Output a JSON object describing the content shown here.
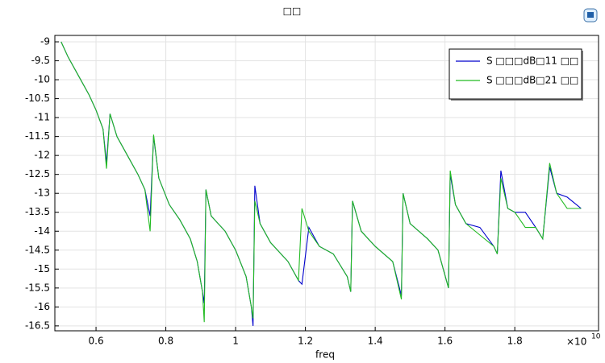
{
  "chart_data": {
    "type": "line",
    "title": "□□",
    "xlabel": "freq",
    "x_multiplier": "×10",
    "x_multiplier_exp": "10",
    "x": [
      0.5,
      0.52,
      0.55,
      0.58,
      0.6,
      0.62,
      0.63,
      0.64,
      0.66,
      0.69,
      0.72,
      0.74,
      0.755,
      0.765,
      0.78,
      0.81,
      0.84,
      0.87,
      0.89,
      0.905,
      0.91,
      0.915,
      0.93,
      0.97,
      1.0,
      1.03,
      1.045,
      1.05,
      1.055,
      1.07,
      1.1,
      1.15,
      1.18,
      1.19,
      1.21,
      1.24,
      1.28,
      1.32,
      1.33,
      1.335,
      1.36,
      1.4,
      1.45,
      1.475,
      1.48,
      1.5,
      1.55,
      1.58,
      1.61,
      1.615,
      1.63,
      1.66,
      1.7,
      1.74,
      1.75,
      1.76,
      1.78,
      1.8,
      1.83,
      1.86,
      1.88,
      1.9,
      1.92,
      1.95,
      1.99
    ],
    "series": [
      {
        "name": "S □□□dB□11 □□",
        "color": "#0000cc",
        "values": [
          -9.0,
          -9.4,
          -9.9,
          -10.4,
          -10.8,
          -11.3,
          -12.2,
          -10.9,
          -11.5,
          -12.0,
          -12.5,
          -12.9,
          -13.6,
          -11.5,
          -12.6,
          -13.3,
          -13.7,
          -14.2,
          -14.8,
          -15.6,
          -15.9,
          -12.9,
          -13.6,
          -14.0,
          -14.5,
          -15.2,
          -16.0,
          -16.5,
          -12.8,
          -13.8,
          -14.3,
          -14.8,
          -15.3,
          -15.4,
          -13.9,
          -14.4,
          -14.6,
          -15.2,
          -15.6,
          -13.2,
          -14.0,
          -14.4,
          -14.8,
          -15.7,
          -13.0,
          -13.8,
          -14.2,
          -14.5,
          -15.5,
          -12.5,
          -13.3,
          -13.8,
          -13.9,
          -14.4,
          -14.6,
          -12.4,
          -13.4,
          -13.5,
          -13.5,
          -13.9,
          -14.2,
          -12.3,
          -13.0,
          -13.1,
          -13.4
        ]
      },
      {
        "name": "S □□□dB□21 □□",
        "color": "#22bb22",
        "values": [
          -9.0,
          -9.4,
          -9.9,
          -10.4,
          -10.8,
          -11.3,
          -12.35,
          -10.9,
          -11.5,
          -12.0,
          -12.5,
          -12.9,
          -14.0,
          -11.45,
          -12.6,
          -13.3,
          -13.7,
          -14.2,
          -14.8,
          -15.6,
          -16.4,
          -12.9,
          -13.6,
          -14.0,
          -14.5,
          -15.2,
          -16.0,
          -16.3,
          -13.2,
          -13.8,
          -14.3,
          -14.8,
          -15.3,
          -13.4,
          -14.0,
          -14.4,
          -14.6,
          -15.2,
          -15.6,
          -13.2,
          -14.0,
          -14.4,
          -14.8,
          -15.8,
          -13.0,
          -13.8,
          -14.2,
          -14.5,
          -15.5,
          -12.4,
          -13.3,
          -13.8,
          -14.1,
          -14.4,
          -14.6,
          -12.6,
          -13.4,
          -13.5,
          -13.9,
          -13.9,
          -14.2,
          -12.2,
          -13.0,
          -13.4,
          -13.4
        ]
      }
    ],
    "xlim": [
      0.482,
      2.04
    ],
    "ylim": [
      -16.63,
      -8.83
    ],
    "xticks": [
      0.6,
      0.8,
      1,
      1.2,
      1.4,
      1.6,
      1.8
    ],
    "yticks": [
      -9,
      -9.5,
      -10,
      -10.5,
      -11,
      -11.5,
      -12,
      -12.5,
      -13,
      -13.5,
      -14,
      -14.5,
      -15,
      -15.5,
      -16,
      -16.5
    ],
    "grid": true,
    "legend": "upper right"
  }
}
